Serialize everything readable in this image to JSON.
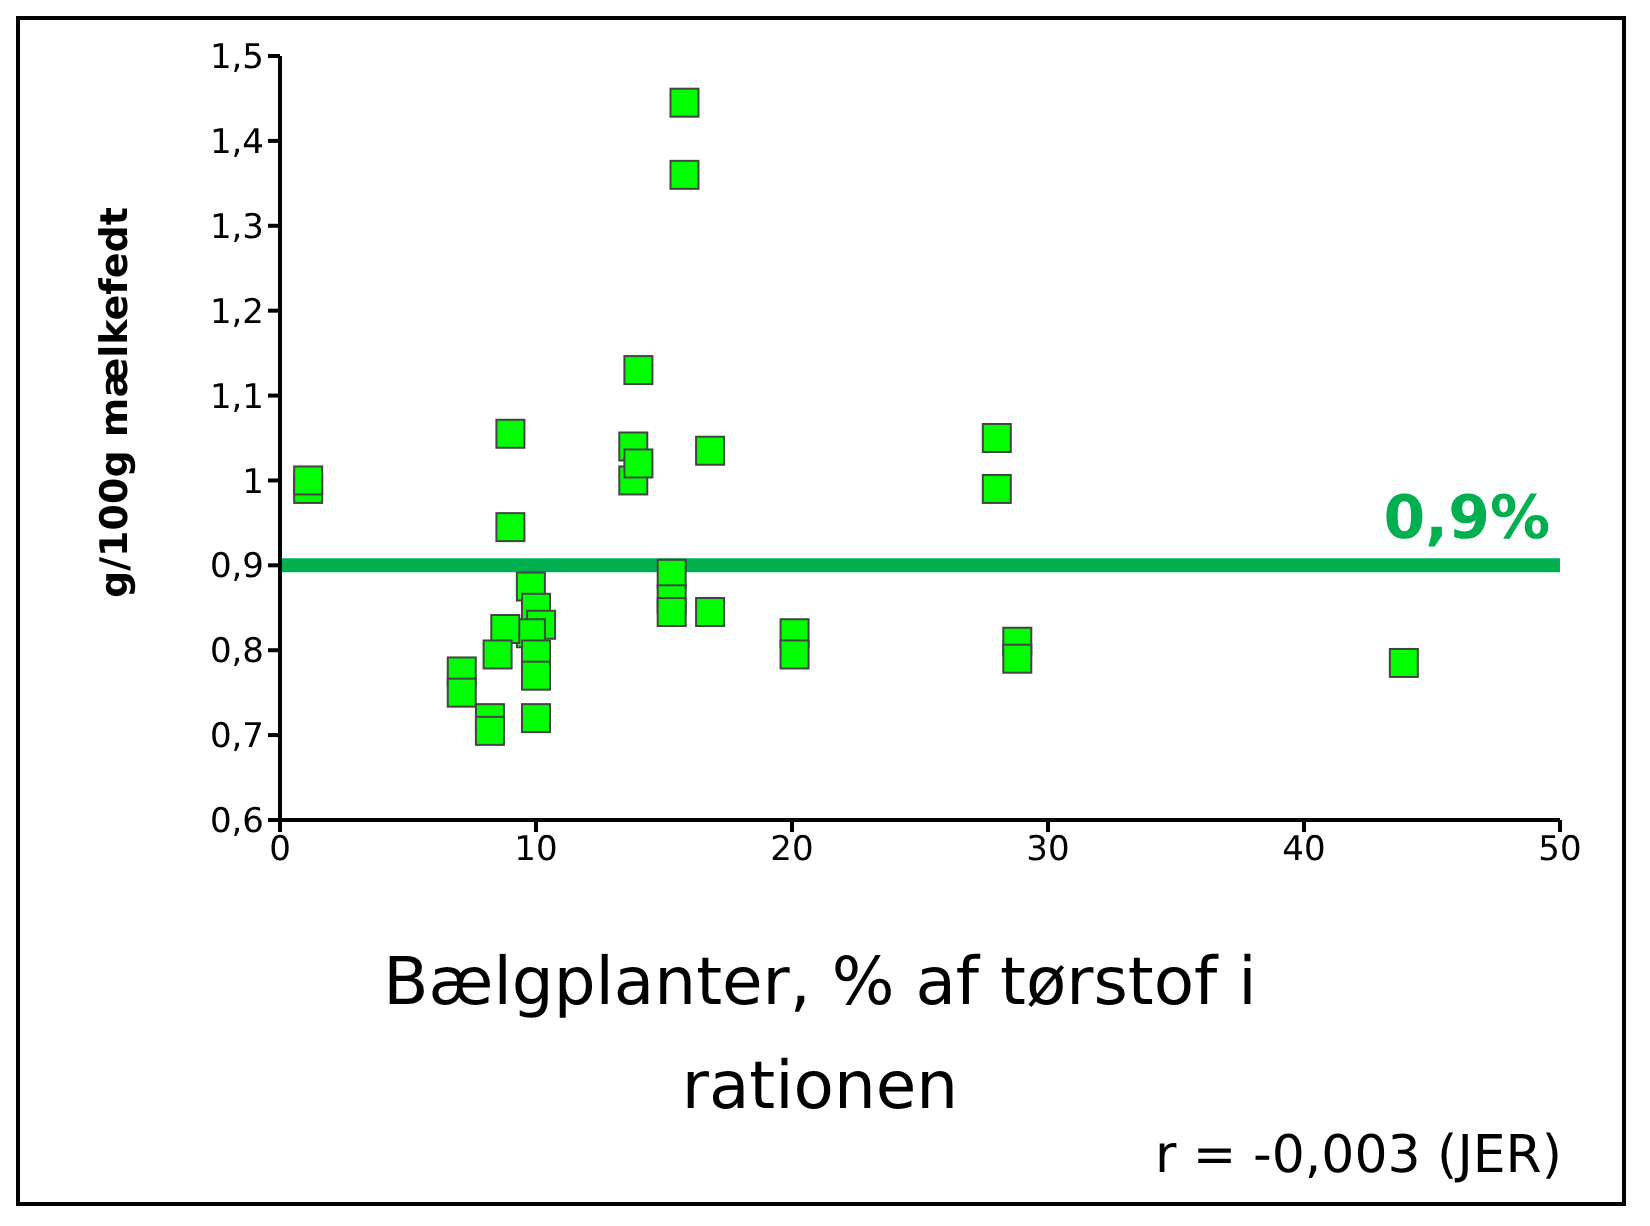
{
  "chart_data": {
    "type": "scatter",
    "xlabel": "Bælgplanter, % af tørstof i rationen",
    "ylabel": "g/100g mælkefedt",
    "x": [
      1.1,
      1.1,
      9,
      9,
      14,
      13.8,
      13.8,
      14,
      16.8,
      15.8,
      15.8,
      15.3,
      15.3,
      15.3,
      16.8,
      9.8,
      10,
      10.2,
      9.8,
      8.8,
      8.5,
      10,
      10,
      7.1,
      7.1,
      8.2,
      8.2,
      10,
      20.1,
      20.1,
      28,
      28,
      28.8,
      28.8,
      43.9
    ],
    "series": [
      {
        "color": "#00ff00",
        "values": [
          0.99,
          1.0,
          1.055,
          0.945,
          1.13,
          1.04,
          1.0,
          1.02,
          1.035,
          1.445,
          1.36,
          0.89,
          0.86,
          0.845,
          0.845,
          0.875,
          0.85,
          0.83,
          0.82,
          0.825,
          0.795,
          0.795,
          0.77,
          0.775,
          0.75,
          0.72,
          0.705,
          0.72,
          0.82,
          0.795,
          1.05,
          0.99,
          0.81,
          0.79,
          0.785
        ]
      }
    ],
    "marker": "square",
    "xlim": [
      0,
      50
    ],
    "xticks": [
      0,
      10,
      20,
      30,
      40,
      50
    ],
    "ylim": [
      0.6,
      1.5
    ],
    "yticks": [
      {
        "value": 0.6,
        "label": "0,6"
      },
      {
        "value": 0.7,
        "label": "0,7"
      },
      {
        "value": 0.8,
        "label": "0,8"
      },
      {
        "value": 0.9,
        "label": "0,9"
      },
      1,
      {
        "value": 1.1,
        "label": "1,1"
      },
      {
        "value": 1.2,
        "label": "1,2"
      },
      {
        "value": 1.3,
        "label": "1,3"
      },
      {
        "value": 1.4,
        "label": "1,4"
      },
      {
        "value": 1.5,
        "label": "1,5"
      }
    ],
    "ref_lines": [
      {
        "axis": "y",
        "value": 0.9,
        "label": "0,9%",
        "color": "#00b050"
      }
    ],
    "annotations": [
      "r = -0,003 (JER)"
    ],
    "grid": false,
    "legend": false
  }
}
